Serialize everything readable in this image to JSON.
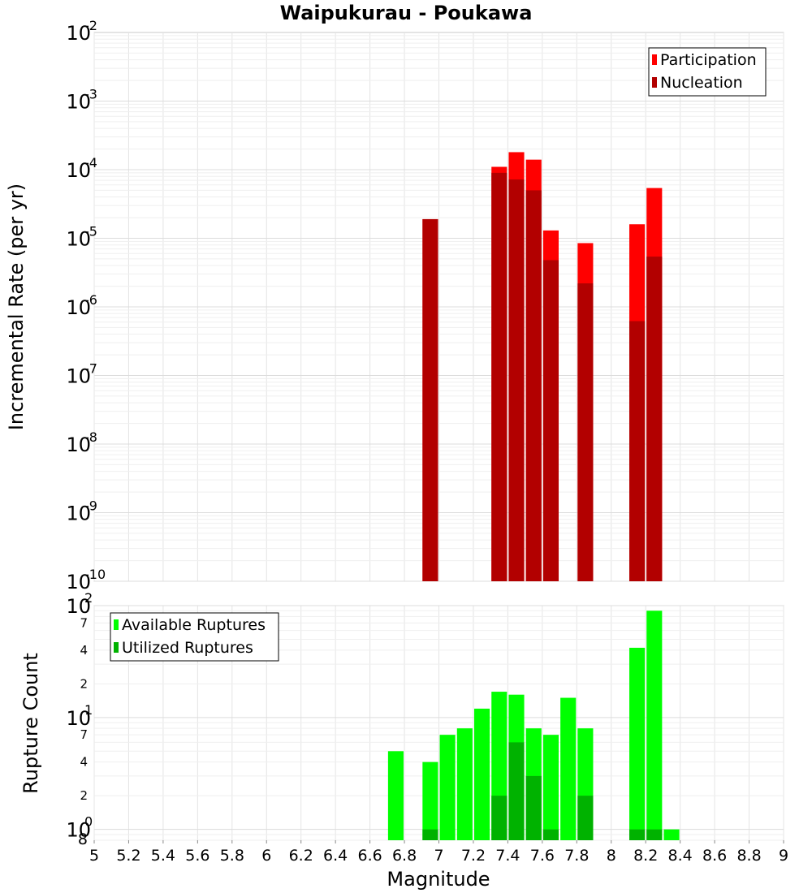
{
  "chart_data": [
    {
      "type": "bar",
      "title": "Waipukurau - Poukawa",
      "xlabel": "",
      "ylabel": "Incremental Rate (per yr)",
      "xlim": [
        5,
        9
      ],
      "ylim": [
        1e-10,
        0.01
      ],
      "yscale": "log",
      "y_ticks": [
        {
          "base": "10",
          "exp": "-10"
        },
        {
          "base": "10",
          "exp": "-9"
        },
        {
          "base": "10",
          "exp": "-8"
        },
        {
          "base": "10",
          "exp": "-7"
        },
        {
          "base": "10",
          "exp": "-6"
        },
        {
          "base": "10",
          "exp": "-5"
        },
        {
          "base": "10",
          "exp": "-4"
        },
        {
          "base": "10",
          "exp": "-3"
        },
        {
          "base": "10",
          "exp": "-2"
        }
      ],
      "grid": true,
      "legend_position": "top-right",
      "bar_width": 0.09,
      "series": [
        {
          "name": "Participation",
          "color": "#ff0000",
          "points": [
            {
              "x": 6.95,
              "y": 1.9e-05
            },
            {
              "x": 7.35,
              "y": 0.00011
            },
            {
              "x": 7.45,
              "y": 0.00018
            },
            {
              "x": 7.55,
              "y": 0.00014
            },
            {
              "x": 7.65,
              "y": 1.3e-05
            },
            {
              "x": 7.85,
              "y": 8.5e-06
            },
            {
              "x": 8.15,
              "y": 1.6e-05
            },
            {
              "x": 8.25,
              "y": 5.4e-05
            }
          ]
        },
        {
          "name": "Nucleation",
          "color": "#b20000",
          "points": [
            {
              "x": 6.95,
              "y": 1.9e-05
            },
            {
              "x": 7.35,
              "y": 9e-05
            },
            {
              "x": 7.45,
              "y": 7.2e-05
            },
            {
              "x": 7.55,
              "y": 5e-05
            },
            {
              "x": 7.65,
              "y": 4.8e-06
            },
            {
              "x": 7.85,
              "y": 2.2e-06
            },
            {
              "x": 8.15,
              "y": 6.2e-07
            },
            {
              "x": 8.25,
              "y": 5.4e-06
            }
          ]
        }
      ]
    },
    {
      "type": "bar",
      "title": "",
      "xlabel": "Magnitude",
      "ylabel": "Rupture Count",
      "xlim": [
        5,
        9
      ],
      "ylim": [
        0.8,
        100
      ],
      "yscale": "log",
      "x_ticks": [
        "5",
        "5.2",
        "5.4",
        "5.6",
        "5.8",
        "6",
        "6.2",
        "6.4",
        "6.6",
        "6.8",
        "7",
        "7.2",
        "7.4",
        "7.6",
        "7.8",
        "8",
        "8.2",
        "8.4",
        "8.6",
        "8.8",
        "9"
      ],
      "y_major_ticks": [
        {
          "value": 1,
          "base": "10",
          "exp": "0"
        },
        {
          "value": 10,
          "base": "10",
          "exp": "1"
        },
        {
          "value": 100,
          "base": "10",
          "exp": "2"
        }
      ],
      "y_minor_ticks": [
        {
          "value": 0.8,
          "label": "8"
        },
        {
          "value": 2,
          "label": "2"
        },
        {
          "value": 4,
          "label": "4"
        },
        {
          "value": 7,
          "label": "7"
        },
        {
          "value": 20,
          "label": "2"
        },
        {
          "value": 40,
          "label": "4"
        },
        {
          "value": 70,
          "label": "7"
        }
      ],
      "grid": true,
      "legend_position": "top-left",
      "bar_width": 0.09,
      "series": [
        {
          "name": "Available Ruptures",
          "color": "#00ff00",
          "points": [
            {
              "x": 6.75,
              "y": 5
            },
            {
              "x": 6.95,
              "y": 4
            },
            {
              "x": 7.05,
              "y": 7
            },
            {
              "x": 7.15,
              "y": 8
            },
            {
              "x": 7.25,
              "y": 12
            },
            {
              "x": 7.35,
              "y": 17
            },
            {
              "x": 7.45,
              "y": 16
            },
            {
              "x": 7.55,
              "y": 8
            },
            {
              "x": 7.65,
              "y": 7
            },
            {
              "x": 7.75,
              "y": 15
            },
            {
              "x": 7.85,
              "y": 8
            },
            {
              "x": 8.15,
              "y": 42
            },
            {
              "x": 8.25,
              "y": 90
            },
            {
              "x": 8.35,
              "y": 1
            }
          ]
        },
        {
          "name": "Utilized Ruptures",
          "color": "#00b200",
          "points": [
            {
              "x": 6.95,
              "y": 1
            },
            {
              "x": 7.35,
              "y": 2
            },
            {
              "x": 7.45,
              "y": 6
            },
            {
              "x": 7.55,
              "y": 3
            },
            {
              "x": 7.65,
              "y": 1
            },
            {
              "x": 7.85,
              "y": 2
            },
            {
              "x": 8.15,
              "y": 1
            },
            {
              "x": 8.25,
              "y": 1
            }
          ]
        }
      ]
    }
  ]
}
